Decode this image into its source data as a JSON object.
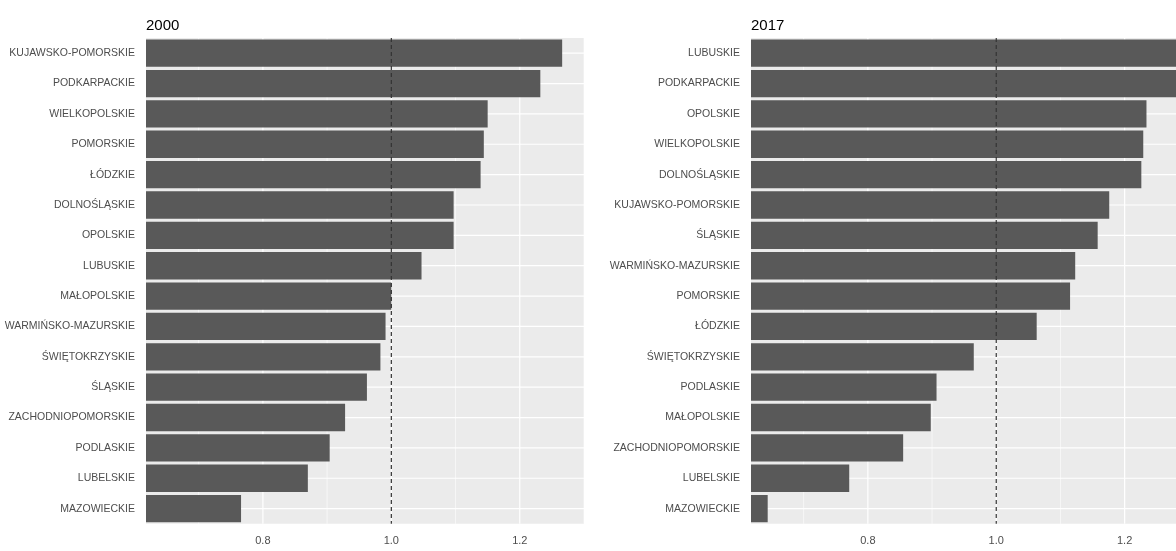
{
  "chart_data": [
    {
      "type": "bar",
      "orientation": "horizontal",
      "title": "2000",
      "color": "#595959",
      "grid": true,
      "legend": false,
      "categories": [
        "KUJAWSKO-POMORSKIE",
        "PODKARPACKIE",
        "WIELKOPOLSKIE",
        "POMORSKIE",
        "ŁÓDZKIE",
        "DOLNOŚLĄSKIE",
        "OPOLSKIE",
        "LUBUSKIE",
        "MAŁOPOLSKIE",
        "WARMIŃSKO-MAZURSKIE",
        "ŚWIĘTOKRZYSKIE",
        "ŚLĄSKIE",
        "ZACHODNIOPOMORSKIE",
        "PODLASKIE",
        "LUBELSKIE",
        "MAZOWIECKIE"
      ],
      "values": [
        1.266,
        1.232,
        1.15,
        1.144,
        1.139,
        1.097,
        1.097,
        1.047,
        1.0,
        0.991,
        0.983,
        0.962,
        0.928,
        0.904,
        0.87,
        0.766
      ],
      "xlim": [
        0.618,
        1.3
      ],
      "xticks": [
        {
          "value": 0.7,
          "label": null
        },
        {
          "value": 0.8,
          "label": "0.8"
        },
        {
          "value": 0.9,
          "label": null
        },
        {
          "value": 1.0,
          "label": "1.0"
        },
        {
          "value": 1.1,
          "label": null
        },
        {
          "value": 1.2,
          "label": "1.2"
        },
        {
          "value": 1.3,
          "label": null
        }
      ],
      "ref_lines": [
        {
          "axis": "x",
          "value": 1.0,
          "line_style": "dashed",
          "color": "#333333"
        }
      ]
    },
    {
      "type": "bar",
      "orientation": "horizontal",
      "title": "2017",
      "color": "#595959",
      "grid": true,
      "legend": false,
      "categories": [
        "LUBUSKIE",
        "PODKARPACKIE",
        "OPOLSKIE",
        "WIELKOPOLSKIE",
        "DOLNOŚLĄSKIE",
        "KUJAWSKO-POMORSKIE",
        "ŚLĄSKIE",
        "WARMIŃSKO-MAZURSKIE",
        "POMORSKIE",
        "ŁÓDZKIE",
        "ŚWIĘTOKRZYSKIE",
        "PODLASKIE",
        "MAŁOPOLSKIE",
        "ZACHODNIOPOMORSKIE",
        "LUBELSKIE",
        "MAZOWIECKIE"
      ],
      "values": [
        1.28,
        1.28,
        1.234,
        1.229,
        1.226,
        1.176,
        1.158,
        1.123,
        1.115,
        1.063,
        0.965,
        0.907,
        0.898,
        0.855,
        0.771,
        0.644
      ],
      "xlim": [
        0.618,
        1.28
      ],
      "xticks": [
        {
          "value": 0.7,
          "label": null
        },
        {
          "value": 0.8,
          "label": "0.8"
        },
        {
          "value": 0.9,
          "label": null
        },
        {
          "value": 1.0,
          "label": "1.0"
        },
        {
          "value": 1.1,
          "label": null
        },
        {
          "value": 1.2,
          "label": "1.2"
        }
      ],
      "ref_lines": [
        {
          "axis": "x",
          "value": 1.0,
          "line_style": "dashed",
          "color": "#333333"
        }
      ]
    }
  ]
}
